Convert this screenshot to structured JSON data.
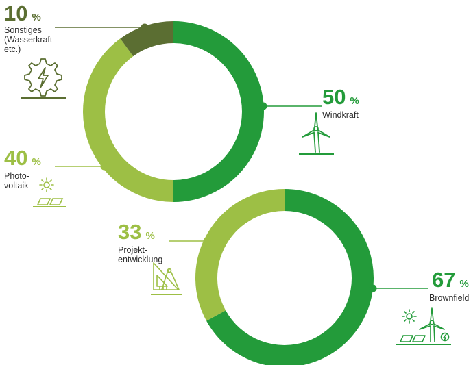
{
  "colors": {
    "wind": "#239b3a",
    "pv": "#9dbf45",
    "other": "#5b6e32",
    "brown": "#239b3a",
    "project": "#9dbf45"
  },
  "icons": {
    "other": "gear-lightning-icon",
    "wind": "wind-turbine-icon",
    "pv": "solar-panel-icon",
    "project": "drafting-tools-icon",
    "brown": "solar-wind-gear-icon"
  },
  "chart_data": [
    {
      "type": "pie",
      "categories": [
        "Windkraft",
        "Photo-\nvoltaik",
        "Sonstiges\n(Wasserkraft\netc.)"
      ],
      "values": [
        50,
        40,
        10
      ],
      "unit": "%",
      "series": [
        {
          "key": "wind",
          "value": 50,
          "label": "Windkraft"
        },
        {
          "key": "pv",
          "value": 40,
          "label": "Photo-\nvoltaik"
        },
        {
          "key": "other",
          "value": 10,
          "label": "Sonstiges\n(Wasserkraft\netc.)"
        }
      ]
    },
    {
      "type": "pie",
      "categories": [
        "Brownfield",
        "Projekt-\nentwicklung"
      ],
      "values": [
        67,
        33
      ],
      "unit": "%",
      "series": [
        {
          "key": "brown",
          "value": 67,
          "label": "Brownfield"
        },
        {
          "key": "project",
          "value": 33,
          "label": "Projekt-\nentwicklung"
        }
      ]
    }
  ]
}
